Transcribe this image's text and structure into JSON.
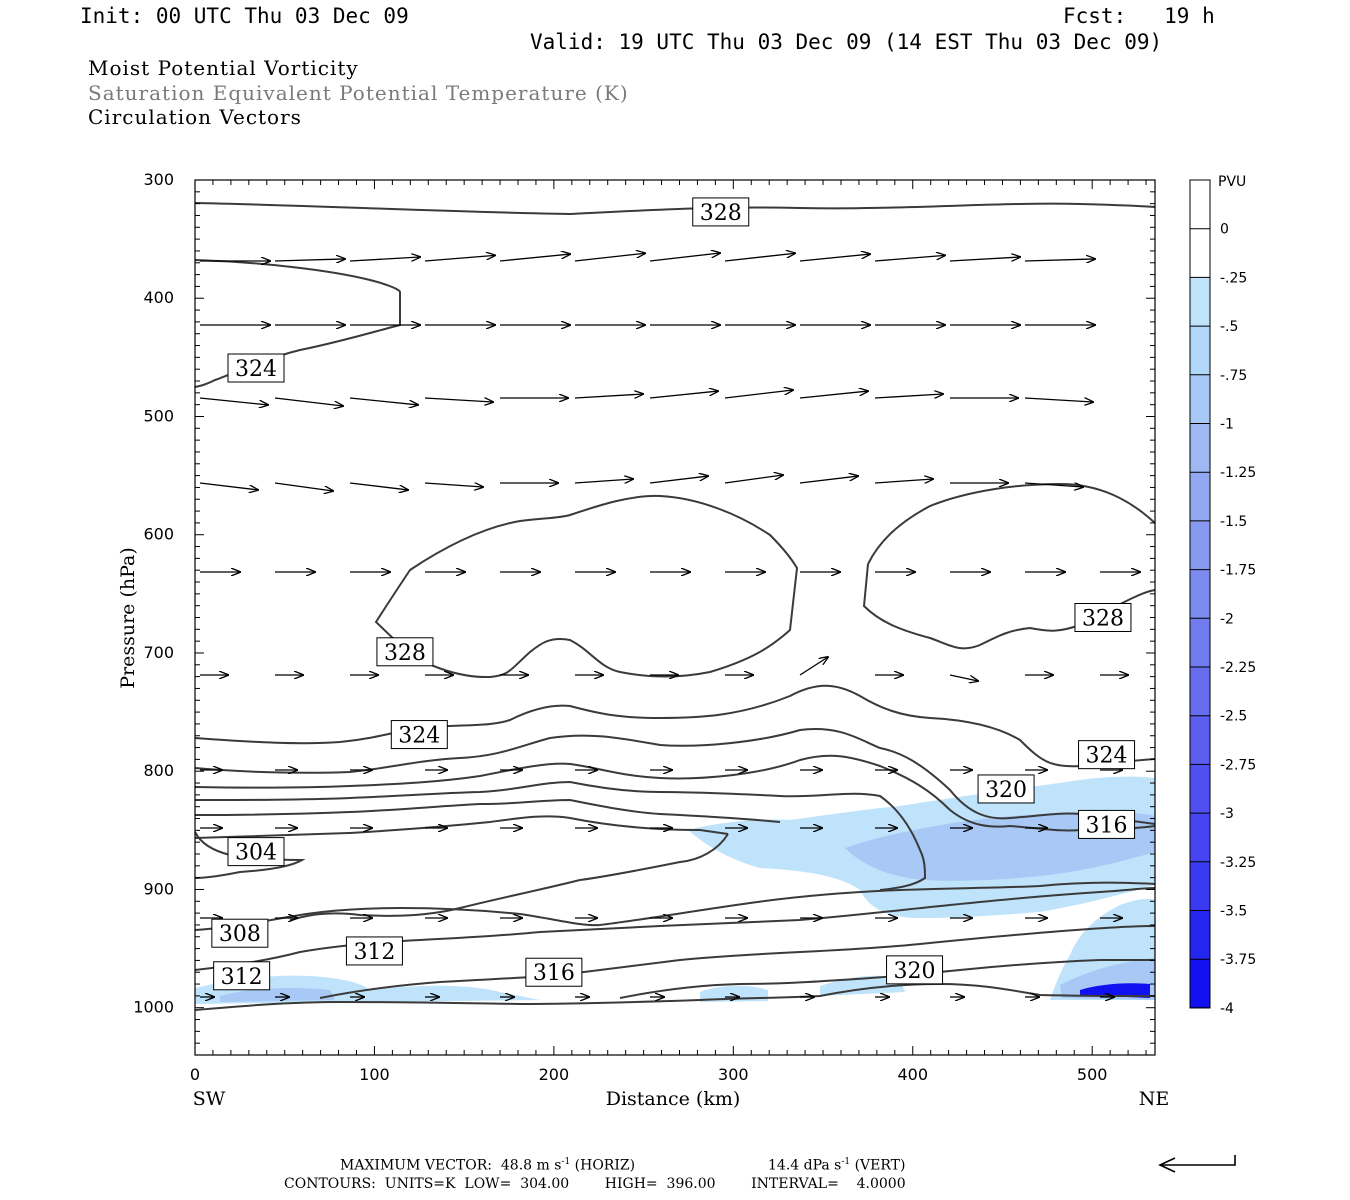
{
  "header": {
    "init": "Init: 00 UTC Thu 03 Dec 09",
    "fcst": "Fcst:   19 h",
    "valid": "Valid: 19 UTC Thu 03 Dec 09 (14 EST Thu 03 Dec 09)",
    "field1": "Moist Potential Vorticity",
    "field2": "Saturation Equivalent Potential Temperature (K)",
    "field3": "Circulation Vectors"
  },
  "footer": {
    "max_vector": "MAXIMUM VECTOR:  48.8 m s",
    "max_vector_exp": "-1",
    "max_vector_h": " (HORIZ)",
    "vert": "14.4 dPa s",
    "vert_exp": "-1",
    "vert_h": " (VERT)",
    "contours": "CONTOURS:  UNITS=K  LOW=  304.00        HIGH=  396.00        INTERVAL=    4.0000"
  },
  "colors": {
    "contour": "#3a3a3a",
    "pv_light": "#bfe3fb",
    "pv_mid": "#a8c8f5",
    "pv_dark": "#1010f0"
  },
  "chart_data": {
    "type": "heatmap",
    "xlabel": "Distance (km)",
    "ylabel": "Pressure (hPa)",
    "x_ticks": [
      0,
      100,
      200,
      300,
      400,
      500
    ],
    "y_ticks": [
      300,
      400,
      500,
      600,
      700,
      800,
      900,
      1000
    ],
    "xlim": [
      0,
      535
    ],
    "ylim": [
      300,
      1040
    ],
    "x_end_labels": {
      "left": "SW",
      "right": "NE"
    },
    "colorbar": {
      "unit": "PVU",
      "levels": [
        "0",
        "-.25",
        "-.5",
        "-.75",
        "-1",
        "-1.25",
        "-1.5",
        "-1.75",
        "-2",
        "-2.25",
        "-2.5",
        "-2.75",
        "-3",
        "-3.25",
        "-3.5",
        "-3.75",
        "-4"
      ],
      "colors": [
        "#ffffff",
        "#ffffff",
        "#bfe3fb",
        "#b0d6f9",
        "#a8c8f5",
        "#9db8f3",
        "#92a9f1",
        "#879af0",
        "#7c8bef",
        "#717cee",
        "#666def",
        "#5b5eef",
        "#5050f0",
        "#4545f1",
        "#3a3af2",
        "#2525f2",
        "#1010f0"
      ]
    },
    "contour_labels": [
      {
        "text": "328",
        "x": 293,
        "p": 327
      },
      {
        "text": "324",
        "x": 34,
        "p": 459
      },
      {
        "text": "328",
        "x": 117,
        "p": 699
      },
      {
        "text": "328",
        "x": 506,
        "p": 670
      },
      {
        "text": "324",
        "x": 125,
        "p": 769
      },
      {
        "text": "324",
        "x": 508,
        "p": 786
      },
      {
        "text": "320",
        "x": 452,
        "p": 815
      },
      {
        "text": "316",
        "x": 508,
        "p": 845
      },
      {
        "text": "304",
        "x": 34,
        "p": 868
      },
      {
        "text": "308",
        "x": 25,
        "p": 937
      },
      {
        "text": "312",
        "x": 100,
        "p": 952
      },
      {
        "text": "312",
        "x": 26,
        "p": 973
      },
      {
        "text": "316",
        "x": 200,
        "p": 970
      },
      {
        "text": "320",
        "x": 401,
        "p": 968
      }
    ]
  }
}
